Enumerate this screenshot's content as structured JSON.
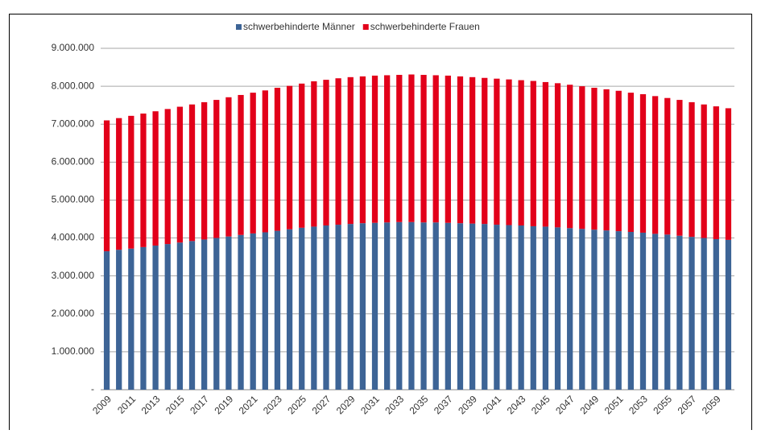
{
  "chart_data": {
    "type": "bar",
    "stacked": true,
    "grid": true,
    "legend": "top",
    "categories": [
      "2009",
      null,
      "2011",
      null,
      "2013",
      null,
      "2015",
      null,
      "2017",
      null,
      "2019",
      null,
      "2021",
      null,
      "2023",
      null,
      "2025",
      null,
      "2027",
      null,
      "2029",
      null,
      "2031",
      null,
      "2033",
      null,
      "2035",
      null,
      "2037",
      null,
      "2039",
      null,
      "2041",
      null,
      "2043",
      null,
      "2045",
      null,
      "2047",
      null,
      "2049",
      null,
      "2051",
      null,
      "2053",
      null,
      "2055",
      null,
      "2057",
      null,
      "2059",
      null
    ],
    "series": [
      {
        "name": "schwerbehinderte Männer",
        "color": "#3d6496",
        "values": [
          3650000,
          3690000,
          3720000,
          3760000,
          3800000,
          3840000,
          3880000,
          3920000,
          3960000,
          4000000,
          4040000,
          4080000,
          4120000,
          4150000,
          4190000,
          4230000,
          4270000,
          4300000,
          4330000,
          4350000,
          4370000,
          4390000,
          4400000,
          4410000,
          4420000,
          4420000,
          4410000,
          4410000,
          4400000,
          4390000,
          4380000,
          4370000,
          4350000,
          4340000,
          4330000,
          4310000,
          4300000,
          4280000,
          4260000,
          4240000,
          4220000,
          4200000,
          4180000,
          4160000,
          4140000,
          4110000,
          4090000,
          4060000,
          4030000,
          4000000,
          3970000,
          3950000
        ]
      },
      {
        "name": "schwerbehinderte Frauen",
        "color": "#e2001a",
        "values": [
          3450000,
          3470000,
          3500000,
          3520000,
          3540000,
          3560000,
          3580000,
          3600000,
          3620000,
          3640000,
          3670000,
          3690000,
          3710000,
          3740000,
          3770000,
          3780000,
          3800000,
          3830000,
          3840000,
          3860000,
          3870000,
          3870000,
          3880000,
          3880000,
          3880000,
          3890000,
          3890000,
          3880000,
          3880000,
          3870000,
          3860000,
          3850000,
          3850000,
          3840000,
          3830000,
          3830000,
          3810000,
          3800000,
          3780000,
          3760000,
          3740000,
          3720000,
          3700000,
          3670000,
          3650000,
          3630000,
          3600000,
          3580000,
          3550000,
          3520000,
          3500000,
          3470000
        ]
      }
    ],
    "ylim": [
      0,
      9000000
    ],
    "yticks": [
      {
        "value": 0,
        "label": "-"
      },
      {
        "value": 1000000,
        "label": "1.000.000"
      },
      {
        "value": 2000000,
        "label": "2.000.000"
      },
      {
        "value": 3000000,
        "label": "3.000.000"
      },
      {
        "value": 4000000,
        "label": "4.000.000"
      },
      {
        "value": 5000000,
        "label": "5.000.000"
      },
      {
        "value": 6000000,
        "label": "6.000.000"
      },
      {
        "value": 7000000,
        "label": "7.000.000"
      },
      {
        "value": 8000000,
        "label": "8.000.000"
      },
      {
        "value": 9000000,
        "label": "9.000.000"
      }
    ]
  }
}
